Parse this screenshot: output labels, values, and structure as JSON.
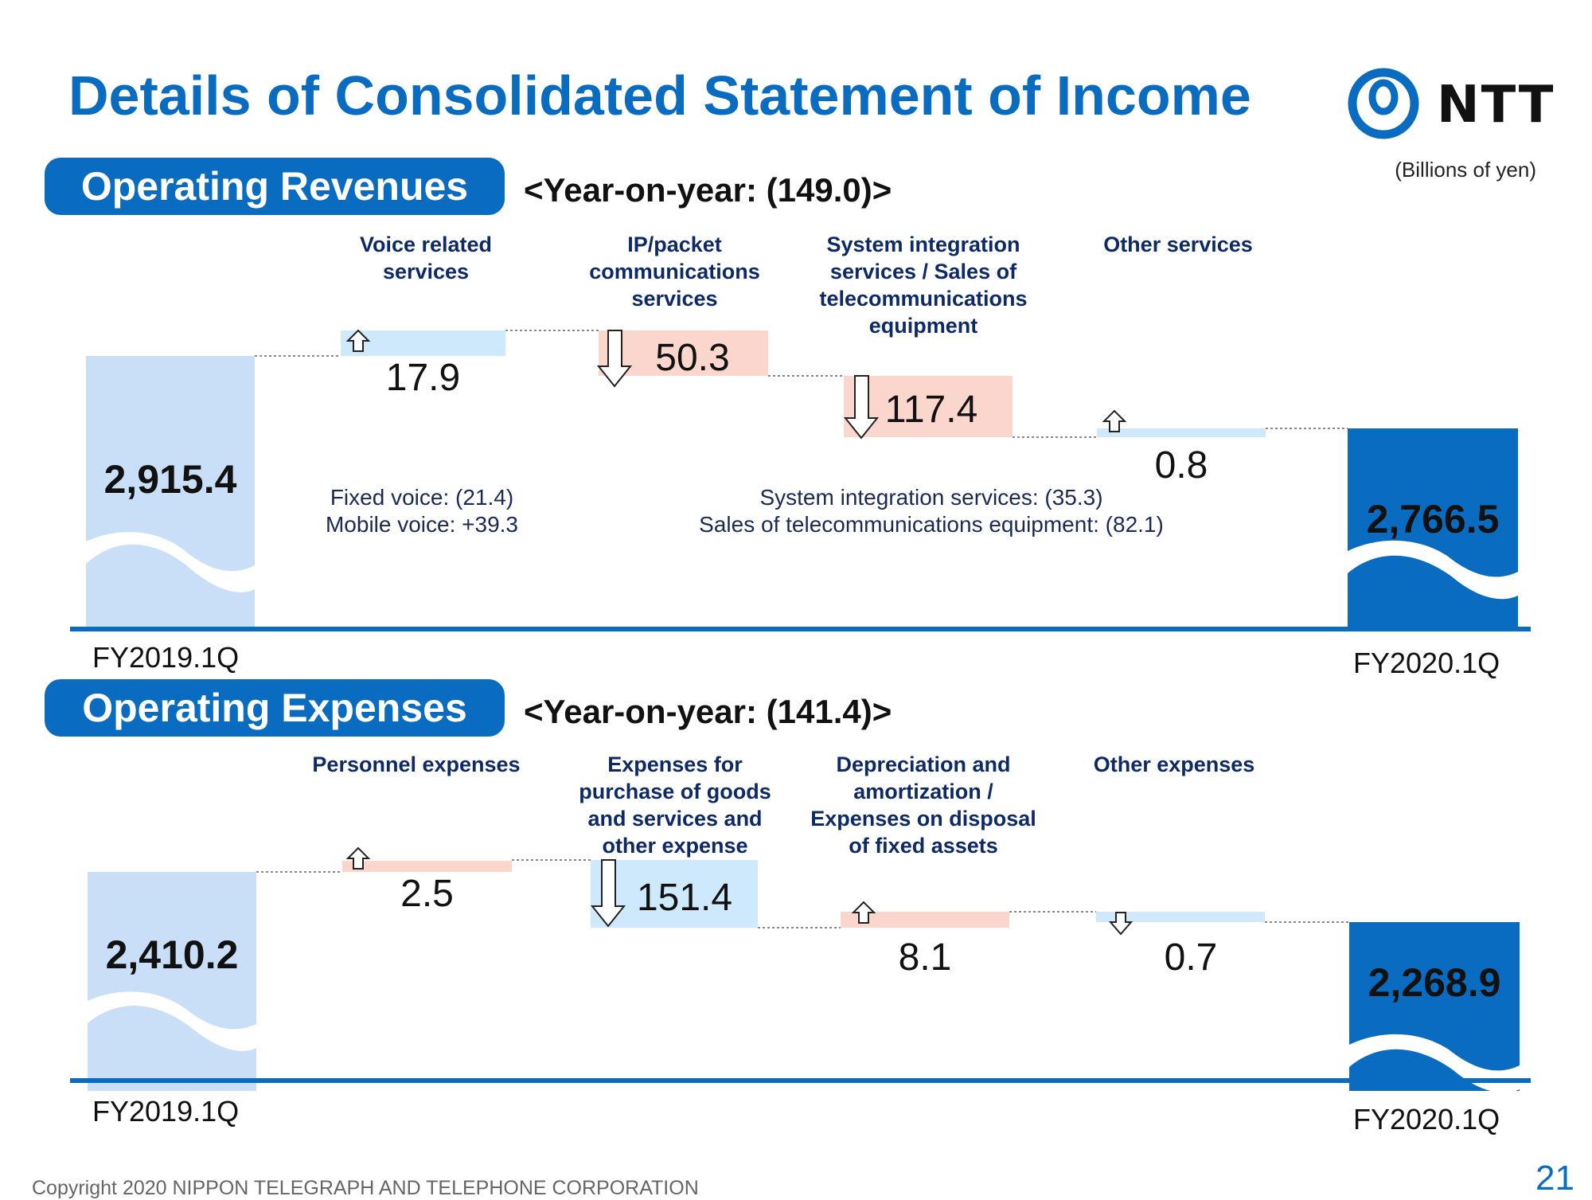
{
  "title": "Details of Consolidated Statement of Income",
  "logo": {
    "text": "NTT",
    "brand_color": "#0a6cc0"
  },
  "unit_note": "(Billions of yen)",
  "footer": "Copyright 2020 NIPPON TELEGRAPH AND TELEPHONE CORPORATION",
  "page_number": "21",
  "colors": {
    "start_bar": "#c9dff7",
    "end_bar": "#0a6cc0",
    "increase_revenue": "#cde9fb",
    "decrease_revenue": "#fbd6cc"
  },
  "sections": {
    "revenues": {
      "label": "Operating Revenues",
      "yoy": "<Year-on-year: (149.0)>",
      "start_period": "FY2019.1Q",
      "end_period": "FY2020.1Q",
      "start_value": "2,915.4",
      "end_value": "2,766.5",
      "items": [
        {
          "header": "Voice related\nservices",
          "value": "17.9",
          "direction": "up"
        },
        {
          "header": "IP/packet\ncommunications\nservices",
          "value": "50.3",
          "direction": "down"
        },
        {
          "header": "System integration\nservices / Sales of\ntelecommunications\nequipment",
          "value": "117.4",
          "direction": "down"
        },
        {
          "header": "Other services",
          "value": "0.8",
          "direction": "up"
        }
      ],
      "notes": [
        "Fixed voice: (21.4)\nMobile voice: +39.3",
        "System integration services: (35.3)\nSales of telecommunications equipment: (82.1)"
      ]
    },
    "expenses": {
      "label": "Operating Expenses",
      "yoy": "<Year-on-year: (141.4)>",
      "start_period": "FY2019.1Q",
      "end_period": "FY2020.1Q",
      "start_value": "2,410.2",
      "end_value": "2,268.9",
      "items": [
        {
          "header": "Personnel expenses",
          "value": "2.5",
          "direction": "up"
        },
        {
          "header": "Expenses for\npurchase of goods\nand services and\nother expense",
          "value": "151.4",
          "direction": "down"
        },
        {
          "header": "Depreciation and\namortization /\nExpenses on disposal\nof fixed assets",
          "value": "8.1",
          "direction": "up"
        },
        {
          "header": "Other expenses",
          "value": "0.7",
          "direction": "down"
        }
      ]
    }
  },
  "chart_data": [
    {
      "type": "bar",
      "title": "Operating Revenues",
      "subtitle": "<Year-on-year: (149.0)>",
      "categories": [
        "FY2019.1Q",
        "Voice related services",
        "IP/packet communications services",
        "System integration services / Sales of telecommunications equipment",
        "Other services",
        "FY2020.1Q"
      ],
      "values": [
        2915.4,
        17.9,
        -50.3,
        -117.4,
        0.8,
        2766.5
      ]
    },
    {
      "type": "bar",
      "title": "Operating Expenses",
      "subtitle": "<Year-on-year: (141.4)>",
      "categories": [
        "FY2019.1Q",
        "Personnel expenses",
        "Expenses for purchase of goods and services and other expense",
        "Depreciation and amortization / Expenses on disposal of fixed assets",
        "Other expenses",
        "FY2020.1Q"
      ],
      "values": [
        2410.2,
        2.5,
        -151.4,
        8.1,
        -0.7,
        2268.9
      ]
    }
  ]
}
